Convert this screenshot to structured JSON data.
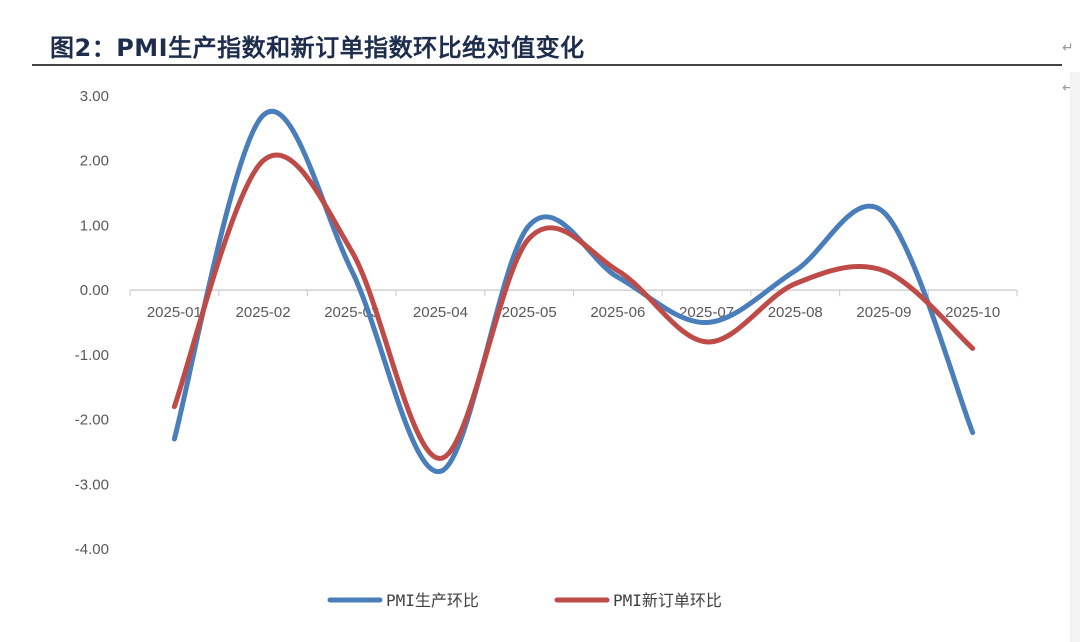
{
  "figure": {
    "title": "图2：PMI生产指数和新订单指数环比绝对值变化"
  },
  "chart_data": {
    "type": "line",
    "title": "",
    "xlabel": "",
    "ylabel": "",
    "categories": [
      "2025-01",
      "2025-02",
      "2025-03",
      "2025-04",
      "2025-05",
      "2025-06",
      "2025-07",
      "2025-08",
      "2025-09",
      "2025-10"
    ],
    "ylim": [
      -4,
      3
    ],
    "yticks": [
      "3.00",
      "2.00",
      "1.00",
      "0.00",
      "-1.00",
      "-2.00",
      "-3.00",
      "-4.00"
    ],
    "grid": false,
    "smooth": true,
    "legend_position": "bottom",
    "series": [
      {
        "name": "PMI生产环比",
        "color": "#4a7ebb",
        "values": [
          -2.3,
          2.7,
          0.3,
          -2.8,
          1.0,
          0.2,
          -0.5,
          0.3,
          1.2,
          -2.2
        ]
      },
      {
        "name": "PMI新订单环比",
        "color": "#be4b48",
        "values": [
          -1.8,
          2.0,
          0.6,
          -2.6,
          0.8,
          0.3,
          -0.8,
          0.1,
          0.3,
          -0.9
        ]
      }
    ]
  }
}
